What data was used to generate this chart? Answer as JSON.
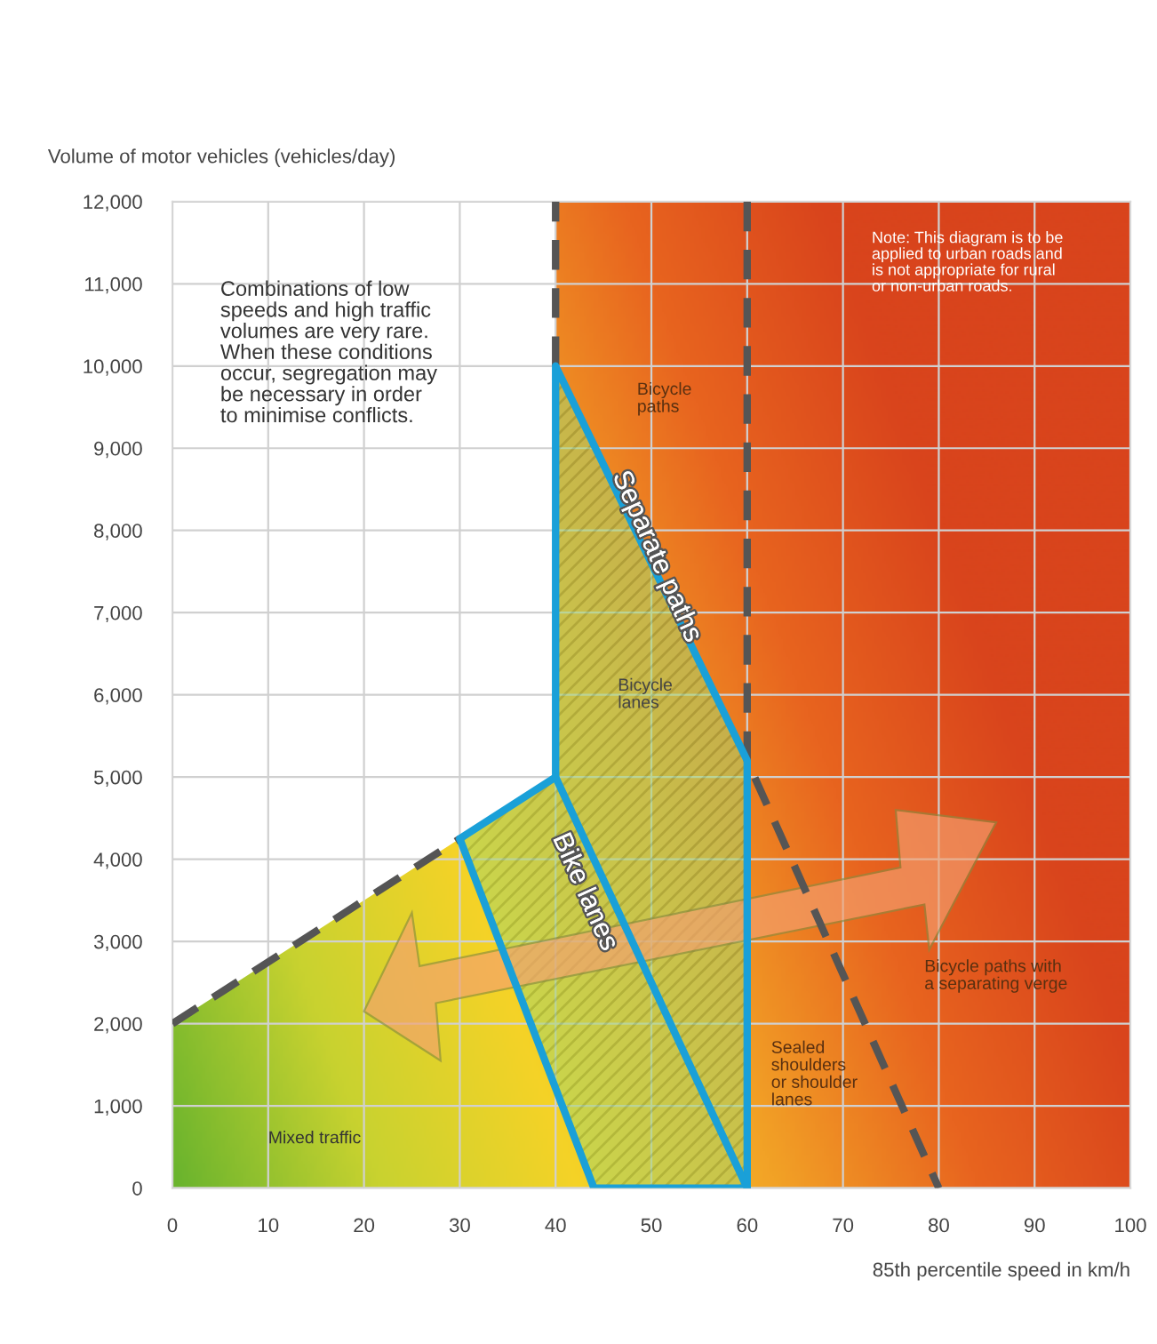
{
  "chart_data": {
    "type": "line",
    "xlabel": "85th percentile speed in km/h",
    "ylabel": "Volume of motor vehicles (vehicles/day)",
    "xlim": [
      0,
      100
    ],
    "ylim": [
      0,
      12000
    ],
    "xticks": [
      0,
      10,
      20,
      30,
      40,
      50,
      60,
      70,
      80,
      90,
      100
    ],
    "yticks": [
      0,
      {
        "value": 1000,
        "label": "1,000"
      },
      {
        "value": 2000,
        "label": "2,000"
      },
      {
        "value": 3000,
        "label": "3,000"
      },
      {
        "value": 4000,
        "label": "4,000"
      },
      {
        "value": 5000,
        "label": "5,000"
      },
      {
        "value": 6000,
        "label": "6,000"
      },
      {
        "value": 7000,
        "label": "7,000"
      },
      {
        "value": 8000,
        "label": "8,000"
      },
      {
        "value": 9000,
        "label": "9,000"
      },
      {
        "value": 10000,
        "label": "10,000"
      },
      {
        "value": 11000,
        "label": "11,000"
      },
      {
        "value": 12000,
        "label": "12,000"
      }
    ],
    "grid": true,
    "marker": "none",
    "series": [
      {
        "line_style": "dashed",
        "color": "#555555",
        "x": [
          0,
          30
        ],
        "values": [
          2000,
          4250
        ]
      },
      {
        "line_style": "dashed",
        "color": "#555555",
        "x": [
          40,
          40
        ],
        "values": [
          10000,
          12000
        ]
      },
      {
        "line_style": "dashed",
        "color": "#555555",
        "x": [
          60,
          60,
          80
        ],
        "values": [
          12000,
          5200,
          0
        ]
      },
      {
        "line_style": "solid",
        "color": "#1aa0d8",
        "x": [
          30,
          40,
          40,
          60,
          60
        ],
        "values": [
          4250,
          5000,
          10000,
          5200,
          0
        ]
      },
      {
        "line_style": "solid",
        "color": "#1aa0d8",
        "x": [
          30,
          44,
          60
        ],
        "values": [
          4250,
          0,
          0
        ]
      },
      {
        "line_style": "solid",
        "color": "#1aa0d8",
        "x": [
          40,
          60
        ],
        "values": [
          5000,
          0
        ]
      }
    ],
    "annotations": [
      "Bicycle\npaths",
      "Bicycle\nlanes",
      "Separate paths",
      "Bike lanes",
      "Mixed traffic",
      "Sealed\nshoulders\nor shoulder\nlanes",
      "Bicycle paths with\na separating verge",
      "Combinations of low\nspeeds and high traffic\nvolumes are very rare.\nWhen these conditions\noccur, segregation may\nbe necessary in order\nto minimise conflicts.",
      "Note: This diagram is to be\napplied to urban roads and\nis not appropriate for rural\nor non-urban roads."
    ]
  }
}
